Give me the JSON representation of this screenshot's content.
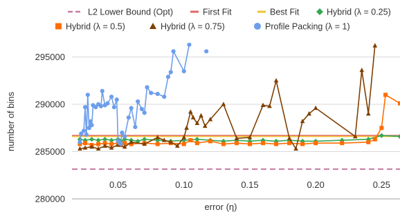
{
  "chart_data": {
    "type": "line",
    "xlabel": "error (η)",
    "ylabel": "number of bins",
    "xlim": [
      0.015,
      0.264
    ],
    "ylim": [
      280000,
      296500
    ],
    "xticks": [
      0.05,
      0.1,
      0.15,
      0.2,
      0.25
    ],
    "xtick_labels": [
      "0.05",
      "0.10",
      "0.15",
      "0.20",
      "0.25"
    ],
    "yticks": [
      280000,
      285000,
      290000,
      295000
    ],
    "ytick_labels": [
      "280000",
      "285000",
      "290000",
      "295000"
    ],
    "grid": "horizontal",
    "legend_position": "top",
    "series": [
      {
        "name": "L2 Lower Bound (Opt)",
        "color": "#c27ba0",
        "style": "dashed",
        "marker": "none",
        "x": [
          0.015,
          0.264
        ],
        "y": [
          283150,
          283150
        ]
      },
      {
        "name": "First Fit",
        "color": "#e06666",
        "style": "solid",
        "marker": "none",
        "x": [
          0.015,
          0.264
        ],
        "y": [
          286700,
          286700
        ]
      },
      {
        "name": "Best Fit",
        "color": "#f1c232",
        "style": "solid",
        "marker": "none",
        "x": [
          0.015,
          0.264
        ],
        "y": [
          286600,
          286600
        ]
      },
      {
        "name": "Hybrid (λ = 0.25)",
        "color": "#34a853",
        "style": "solid",
        "marker": "diamond",
        "x": [
          0.021,
          0.025,
          0.03,
          0.035,
          0.04,
          0.045,
          0.05,
          0.052,
          0.055,
          0.06,
          0.065,
          0.07,
          0.08,
          0.09,
          0.1,
          0.11,
          0.12,
          0.13,
          0.14,
          0.15,
          0.16,
          0.17,
          0.18,
          0.19,
          0.2,
          0.22,
          0.24,
          0.25,
          0.264
        ],
        "y": [
          286300,
          286200,
          286300,
          286200,
          286300,
          286200,
          286300,
          286100,
          286300,
          286200,
          286100,
          286300,
          286200,
          286100,
          286200,
          286300,
          286200,
          286100,
          286200,
          286100,
          286200,
          286100,
          286200,
          286100,
          286100,
          286200,
          286300,
          286700,
          286600
        ]
      },
      {
        "name": "Hybrid (λ = 0.5)",
        "color": "#ff6d01",
        "style": "solid",
        "marker": "square",
        "x": [
          0.021,
          0.025,
          0.03,
          0.035,
          0.04,
          0.045,
          0.05,
          0.052,
          0.055,
          0.06,
          0.07,
          0.08,
          0.09,
          0.1,
          0.105,
          0.11,
          0.12,
          0.13,
          0.14,
          0.15,
          0.16,
          0.17,
          0.18,
          0.19,
          0.2,
          0.22,
          0.24,
          0.245,
          0.25,
          0.253,
          0.264
        ],
        "y": [
          285800,
          285900,
          285700,
          285800,
          285900,
          285800,
          285900,
          285700,
          285900,
          285800,
          285900,
          285800,
          285900,
          285800,
          286200,
          285900,
          286100,
          285800,
          285900,
          285800,
          285900,
          285800,
          285900,
          285800,
          285900,
          285900,
          286000,
          286300,
          287500,
          291000,
          290100
        ]
      },
      {
        "name": "Hybrid (λ = 0.75)",
        "color": "#7f3f00",
        "style": "solid",
        "marker": "triangle",
        "x": [
          0.021,
          0.025,
          0.03,
          0.035,
          0.04,
          0.045,
          0.05,
          0.055,
          0.06,
          0.07,
          0.08,
          0.085,
          0.09,
          0.095,
          0.1,
          0.102,
          0.105,
          0.107,
          0.11,
          0.113,
          0.116,
          0.12,
          0.13,
          0.14,
          0.15,
          0.16,
          0.165,
          0.17,
          0.18,
          0.185,
          0.19,
          0.195,
          0.2,
          0.23,
          0.235,
          0.24,
          0.245
        ],
        "y": [
          285300,
          285400,
          285500,
          285300,
          285600,
          285400,
          285700,
          285500,
          286000,
          285800,
          286500,
          286200,
          286000,
          285600,
          286500,
          287500,
          289200,
          288600,
          288000,
          288800,
          287700,
          288400,
          290000,
          286400,
          286500,
          289900,
          289800,
          292500,
          286400,
          285300,
          288200,
          289000,
          289600,
          286600,
          293600,
          289000,
          296200
        ]
      },
      {
        "name": "Profile Packing (λ = 1)",
        "color": "#6d9eeb",
        "style": "solid",
        "marker": "circle",
        "x": [
          0.021,
          0.022,
          0.024,
          0.025,
          0.026,
          0.027,
          0.028,
          0.029,
          0.03,
          0.031,
          0.033,
          0.035,
          0.037,
          0.038,
          0.04,
          0.042,
          0.045,
          0.047,
          0.049,
          0.05,
          0.051,
          0.052,
          0.053,
          0.055,
          0.058,
          0.06,
          0.063,
          0.065,
          0.068,
          0.07,
          0.072,
          0.075,
          0.08,
          0.085,
          0.088,
          0.09,
          0.092,
          0.1,
          0.104
        ],
        "y": [
          286000,
          286900,
          287200,
          289700,
          286800,
          291000,
          287500,
          288200,
          287800,
          289900,
          289700,
          290000,
          289800,
          291400,
          289900,
          290100,
          290800,
          289700,
          290500,
          286100,
          285900,
          285800,
          287000,
          286600,
          288600,
          289600,
          287600,
          290300,
          289500,
          289100,
          291800,
          291200,
          291100,
          290800,
          292900,
          293400,
          295600,
          293500,
          296300
        ]
      },
      {
        "name": "",
        "color": "#6d9eeb",
        "style": "solid",
        "marker": "circle",
        "x": [
          0.117
        ],
        "y": [
          295600
        ]
      }
    ]
  },
  "legend": {
    "row1": [
      "L2 Lower Bound (Opt)",
      "First Fit",
      "Best Fit",
      "Hybrid (λ = 0.25)"
    ],
    "row2": [
      "Hybrid (λ = 0.5)",
      "Hybrid (λ = 0.75)",
      "Profile Packing (λ = 1)"
    ]
  }
}
